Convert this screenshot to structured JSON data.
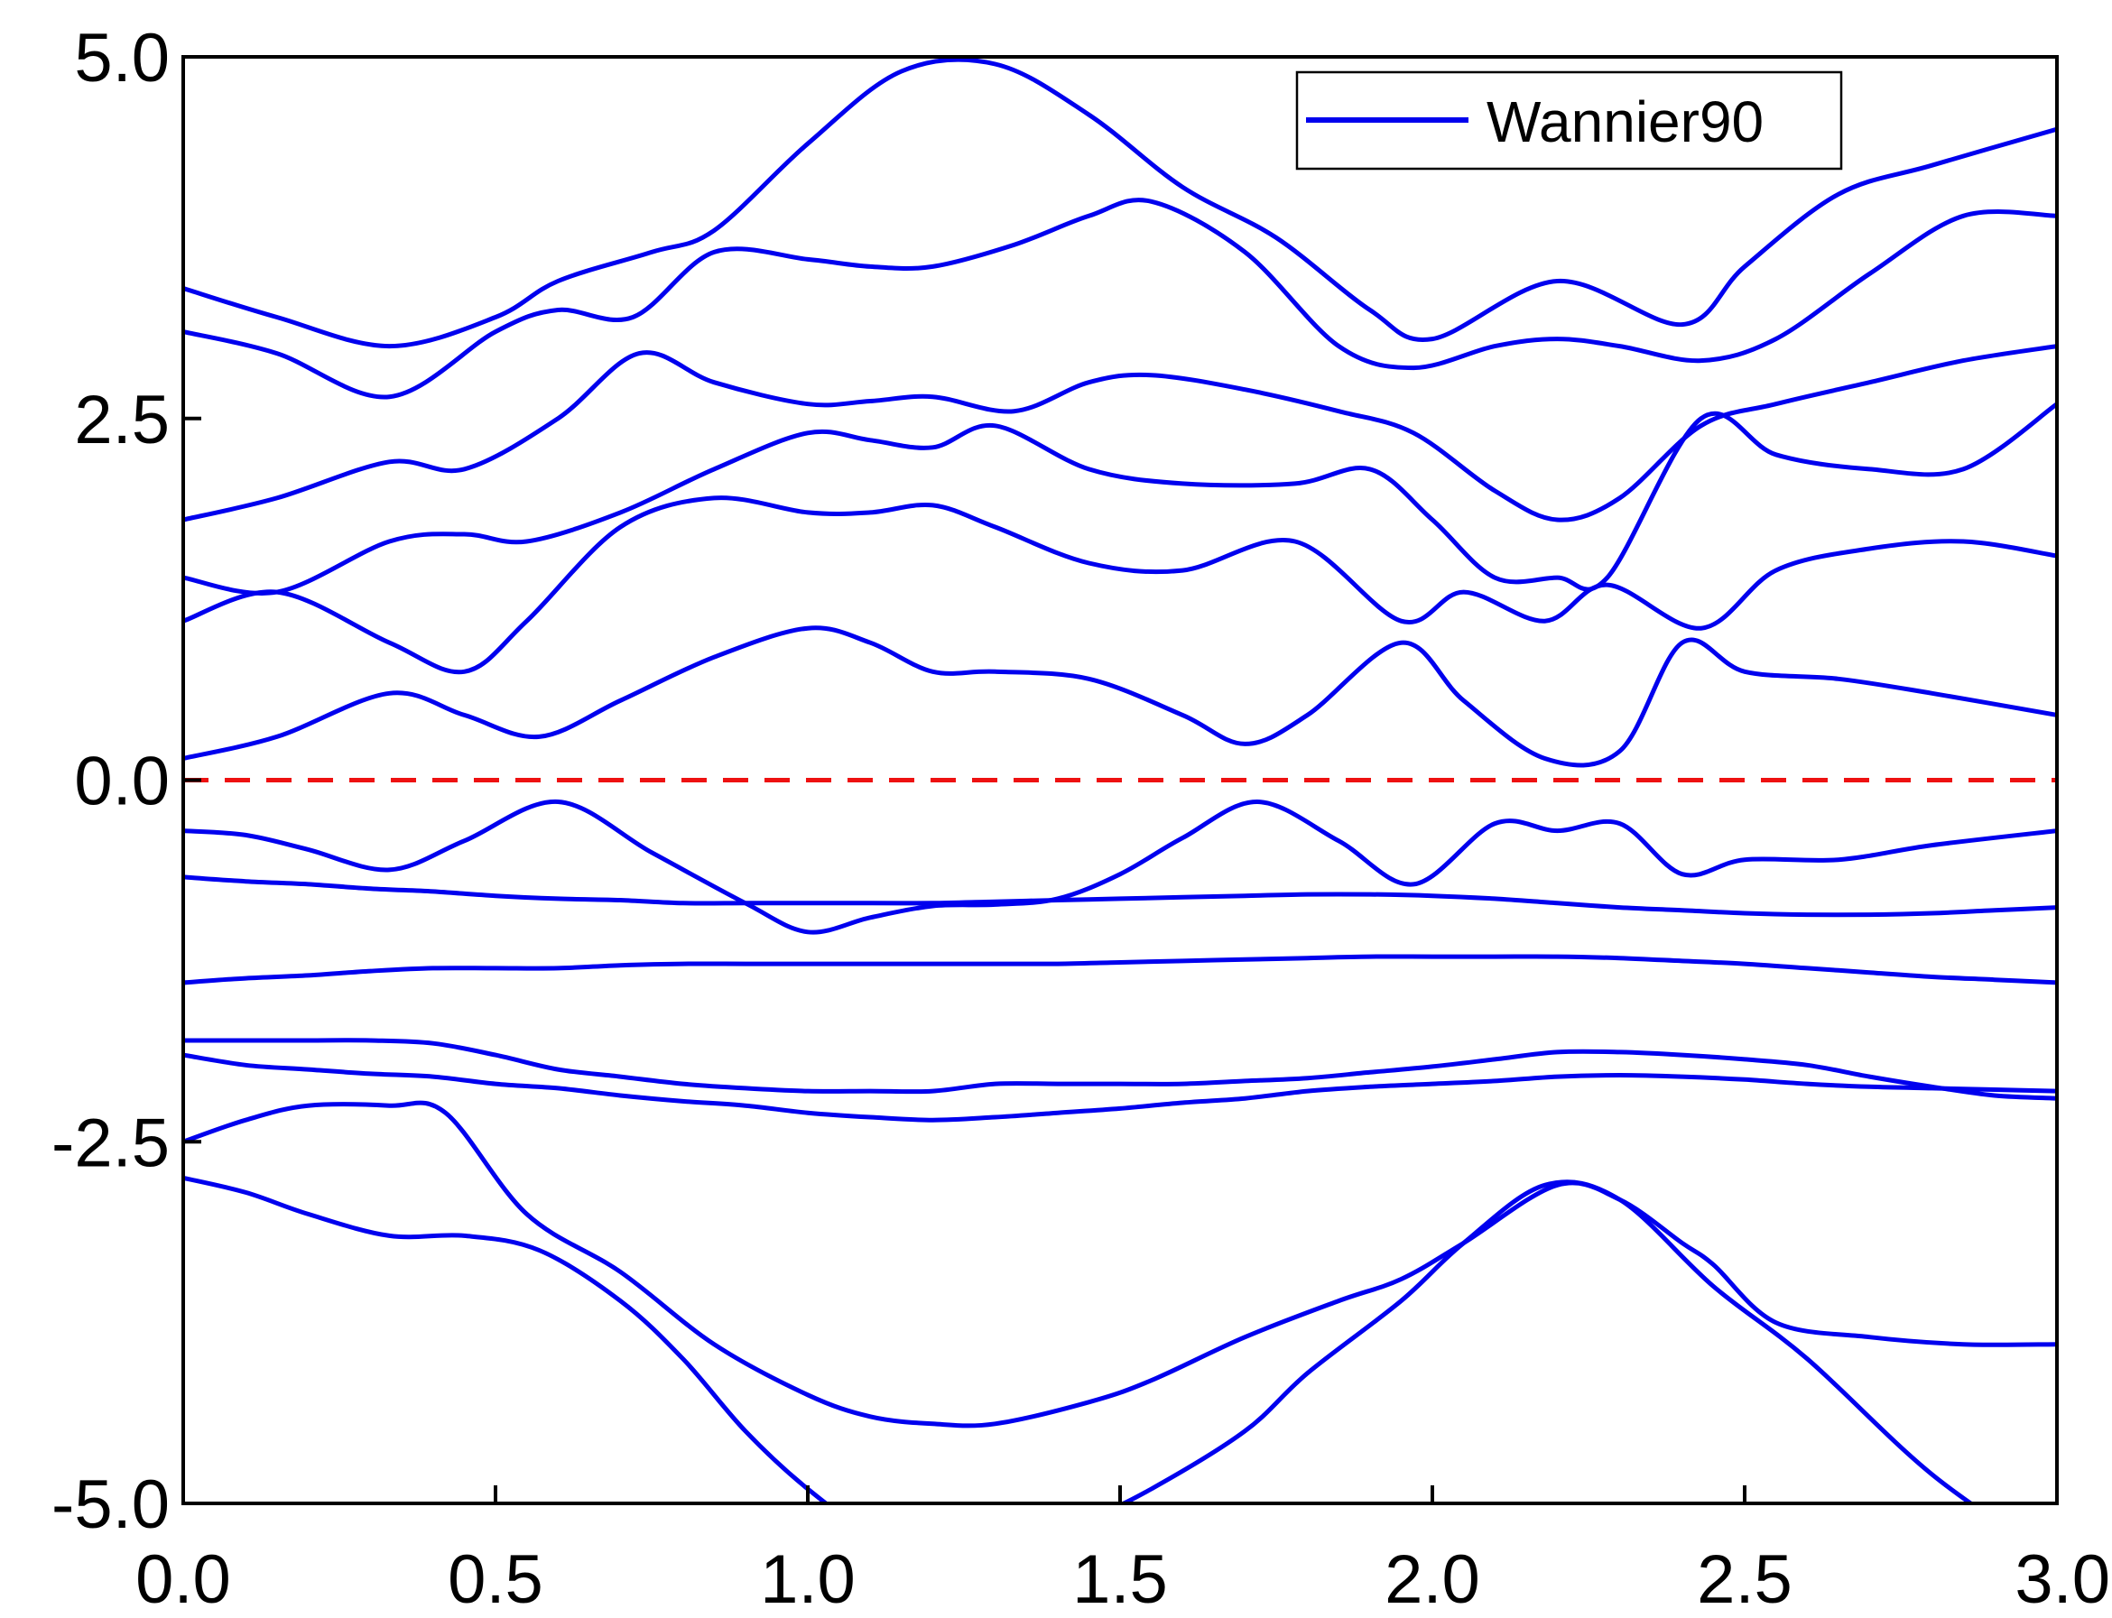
{
  "chart_data": {
    "type": "line",
    "title": "",
    "xlabel": "",
    "ylabel": "",
    "xlim": [
      0.0,
      3.0
    ],
    "ylim": [
      -5.0,
      5.0
    ],
    "xticks": [
      0.0,
      0.5,
      1.0,
      1.5,
      2.0,
      2.5,
      3.0
    ],
    "xtick_labels": [
      "0.0",
      "0.5",
      "1.0",
      "1.5",
      "2.0",
      "2.5",
      "3.0"
    ],
    "yticks": [
      -5.0,
      -2.5,
      0.0,
      2.5,
      5.0
    ],
    "ytick_labels": [
      "-5.0",
      "-2.5",
      "0.0",
      "2.5",
      "5.0"
    ],
    "grid": false,
    "legend_position": "top-right",
    "legend": [
      {
        "label": "Wannier90",
        "color": "#0000ee"
      }
    ],
    "reference_line": {
      "y": 0.0,
      "style": "dashed",
      "color": "#ee1111"
    },
    "series_color": "#0000ee",
    "series": [
      {
        "x": [
          0.0,
          0.1,
          0.2,
          0.33,
          0.45,
          0.57,
          0.7,
          0.8,
          0.9,
          1.0,
          1.1,
          1.2,
          1.3,
          1.45,
          1.55,
          1.7,
          1.8,
          1.95,
          2.05,
          2.18,
          2.3,
          2.45,
          2.6,
          2.8,
          3.0
        ],
        "values": [
          -2.75,
          -2.85,
          -3.0,
          -3.15,
          -3.15,
          -3.25,
          -3.6,
          -4.0,
          -4.5,
          -4.9,
          -5.2,
          -5.3,
          -5.3,
          -5.1,
          -4.9,
          -4.5,
          -4.1,
          -3.6,
          -3.2,
          -2.8,
          -2.9,
          -3.5,
          -4.0,
          -4.8,
          -5.4
        ]
      },
      {
        "x": [
          0.0,
          0.1,
          0.2,
          0.33,
          0.42,
          0.55,
          0.7,
          0.85,
          1.0,
          1.1,
          1.2,
          1.3,
          1.45,
          1.55,
          1.7,
          1.85,
          1.95,
          2.05,
          2.2,
          2.3,
          2.4,
          2.45,
          2.55,
          2.7,
          2.85,
          3.0
        ],
        "values": [
          -2.5,
          -2.35,
          -2.25,
          -2.25,
          -2.3,
          -3.0,
          -3.4,
          -3.9,
          -4.25,
          -4.4,
          -4.45,
          -4.45,
          -4.3,
          -4.15,
          -3.85,
          -3.6,
          -3.45,
          -3.2,
          -2.8,
          -2.9,
          -3.2,
          -3.35,
          -3.75,
          -3.85,
          -3.9,
          -3.9
        ]
      },
      {
        "x": [
          0.0,
          0.1,
          0.2,
          0.3,
          0.4,
          0.5,
          0.6,
          0.7,
          0.8,
          0.9,
          1.0,
          1.1,
          1.2,
          1.3,
          1.4,
          1.5,
          1.6,
          1.7,
          1.8,
          1.9,
          2.0,
          2.1,
          2.2,
          2.3,
          2.4,
          2.5,
          2.6,
          2.7,
          2.8,
          2.9,
          3.0
        ],
        "values": [
          -1.8,
          -1.8,
          -1.8,
          -1.8,
          -1.82,
          -1.9,
          -2.0,
          -2.05,
          -2.1,
          -2.13,
          -2.15,
          -2.15,
          -2.15,
          -2.1,
          -2.1,
          -2.1,
          -2.1,
          -2.08,
          -2.06,
          -2.02,
          -1.98,
          -1.93,
          -1.88,
          -1.88,
          -1.9,
          -1.93,
          -1.97,
          -2.05,
          -2.12,
          -2.18,
          -2.2
        ]
      },
      {
        "x": [
          0.0,
          0.1,
          0.2,
          0.3,
          0.4,
          0.5,
          0.6,
          0.7,
          0.8,
          0.9,
          1.0,
          1.1,
          1.2,
          1.3,
          1.4,
          1.5,
          1.6,
          1.7,
          1.8,
          1.9,
          2.0,
          2.1,
          2.2,
          2.3,
          2.4,
          2.5,
          2.6,
          2.7,
          2.8,
          2.9,
          3.0
        ],
        "values": [
          -1.9,
          -1.97,
          -2.0,
          -2.03,
          -2.05,
          -2.1,
          -2.13,
          -2.18,
          -2.22,
          -2.25,
          -2.3,
          -2.33,
          -2.35,
          -2.33,
          -2.3,
          -2.27,
          -2.23,
          -2.2,
          -2.15,
          -2.12,
          -2.1,
          -2.08,
          -2.05,
          -2.04,
          -2.05,
          -2.07,
          -2.1,
          -2.12,
          -2.13,
          -2.14,
          -2.15
        ]
      },
      {
        "x": [
          0.0,
          0.1,
          0.2,
          0.3,
          0.4,
          0.5,
          0.6,
          0.7,
          0.8,
          0.9,
          1.0,
          1.1,
          1.2,
          1.3,
          1.4,
          1.5,
          1.6,
          1.7,
          1.8,
          1.9,
          2.0,
          2.1,
          2.2,
          2.3,
          2.4,
          2.5,
          2.6,
          2.7,
          2.8,
          2.9,
          3.0
        ],
        "values": [
          -1.4,
          -1.37,
          -1.35,
          -1.32,
          -1.3,
          -1.3,
          -1.3,
          -1.28,
          -1.27,
          -1.27,
          -1.27,
          -1.27,
          -1.27,
          -1.27,
          -1.27,
          -1.26,
          -1.25,
          -1.24,
          -1.23,
          -1.22,
          -1.22,
          -1.22,
          -1.22,
          -1.23,
          -1.25,
          -1.27,
          -1.3,
          -1.33,
          -1.36,
          -1.38,
          -1.4
        ]
      },
      {
        "x": [
          0.0,
          0.1,
          0.2,
          0.3,
          0.4,
          0.5,
          0.6,
          0.7,
          0.8,
          0.9,
          1.0,
          1.1,
          1.2,
          1.3,
          1.4,
          1.5,
          1.6,
          1.7,
          1.8,
          1.9,
          2.0,
          2.1,
          2.2,
          2.3,
          2.4,
          2.5,
          2.6,
          2.7,
          2.8,
          2.9,
          3.0
        ],
        "values": [
          -0.67,
          -0.7,
          -0.72,
          -0.75,
          -0.77,
          -0.8,
          -0.82,
          -0.83,
          -0.85,
          -0.85,
          -0.85,
          -0.85,
          -0.85,
          -0.84,
          -0.83,
          -0.82,
          -0.81,
          -0.8,
          -0.79,
          -0.79,
          -0.8,
          -0.82,
          -0.85,
          -0.88,
          -0.9,
          -0.92,
          -0.93,
          -0.93,
          -0.92,
          -0.9,
          -0.88
        ]
      },
      {
        "x": [
          0.0,
          0.1,
          0.2,
          0.33,
          0.45,
          0.6,
          0.75,
          0.9,
          1.0,
          1.1,
          1.2,
          1.3,
          1.4,
          1.5,
          1.6,
          1.72,
          1.85,
          1.97,
          2.1,
          2.2,
          2.3,
          2.4,
          2.5,
          2.65,
          2.8,
          3.0
        ],
        "values": [
          -0.35,
          -0.38,
          -0.48,
          -0.62,
          -0.42,
          -0.15,
          -0.5,
          -0.85,
          -1.05,
          -0.95,
          -0.87,
          -0.86,
          -0.82,
          -0.65,
          -0.4,
          -0.15,
          -0.42,
          -0.72,
          -0.3,
          -0.35,
          -0.3,
          -0.65,
          -0.55,
          -0.55,
          -0.45,
          -0.35
        ]
      },
      {
        "x": [
          0.0,
          0.15,
          0.33,
          0.45,
          0.57,
          0.7,
          0.85,
          1.0,
          1.1,
          1.2,
          1.3,
          1.45,
          1.6,
          1.7,
          1.8,
          1.95,
          2.05,
          2.18,
          2.3,
          2.4,
          2.5,
          2.65,
          2.8,
          3.0
        ],
        "values": [
          0.15,
          0.3,
          0.6,
          0.45,
          0.3,
          0.55,
          0.85,
          1.05,
          0.95,
          0.75,
          0.75,
          0.7,
          0.45,
          0.25,
          0.45,
          0.95,
          0.55,
          0.15,
          0.2,
          0.95,
          0.75,
          0.7,
          0.6,
          0.45
        ]
      },
      {
        "x": [
          0.0,
          0.15,
          0.33,
          0.45,
          0.55,
          0.7,
          0.85,
          1.0,
          1.1,
          1.2,
          1.3,
          1.45,
          1.6,
          1.78,
          1.95,
          2.05,
          2.18,
          2.28,
          2.43,
          2.55,
          2.7,
          2.85,
          3.0
        ],
        "values": [
          1.1,
          1.3,
          0.95,
          0.75,
          1.1,
          1.75,
          1.95,
          1.85,
          1.85,
          1.9,
          1.75,
          1.5,
          1.45,
          1.65,
          1.1,
          1.3,
          1.1,
          1.35,
          1.05,
          1.45,
          1.6,
          1.65,
          1.55
        ]
      },
      {
        "x": [
          0.0,
          0.15,
          0.33,
          0.45,
          0.55,
          0.7,
          0.85,
          1.0,
          1.1,
          1.2,
          1.3,
          1.45,
          1.6,
          1.78,
          1.9,
          2.0,
          2.1,
          2.2,
          2.28,
          2.43,
          2.55,
          2.7,
          2.85,
          3.0
        ],
        "values": [
          1.4,
          1.3,
          1.65,
          1.7,
          1.65,
          1.85,
          2.15,
          2.4,
          2.35,
          2.3,
          2.45,
          2.15,
          2.05,
          2.05,
          2.15,
          1.8,
          1.4,
          1.4,
          1.4,
          2.5,
          2.25,
          2.15,
          2.15,
          2.6
        ]
      },
      {
        "x": [
          0.0,
          0.15,
          0.33,
          0.45,
          0.6,
          0.73,
          0.85,
          1.0,
          1.1,
          1.2,
          1.33,
          1.45,
          1.55,
          1.7,
          1.85,
          1.97,
          2.1,
          2.2,
          2.3,
          2.43,
          2.55,
          2.7,
          2.85,
          3.0
        ],
        "values": [
          1.8,
          1.95,
          2.2,
          2.15,
          2.5,
          2.95,
          2.75,
          2.6,
          2.62,
          2.65,
          2.55,
          2.75,
          2.8,
          2.7,
          2.55,
          2.4,
          2.0,
          1.8,
          1.95,
          2.45,
          2.6,
          2.75,
          2.9,
          3.0
        ]
      },
      {
        "x": [
          0.0,
          0.15,
          0.33,
          0.5,
          0.6,
          0.72,
          0.85,
          1.0,
          1.1,
          1.2,
          1.33,
          1.45,
          1.55,
          1.7,
          1.85,
          1.97,
          2.1,
          2.2,
          2.3,
          2.43,
          2.55,
          2.7,
          2.85,
          3.0
        ],
        "values": [
          3.1,
          2.95,
          2.65,
          3.1,
          3.25,
          3.2,
          3.65,
          3.6,
          3.55,
          3.55,
          3.7,
          3.9,
          4.0,
          3.65,
          3.0,
          2.85,
          3.0,
          3.05,
          3.0,
          2.9,
          3.05,
          3.5,
          3.9,
          3.9
        ]
      },
      {
        "x": [
          0.0,
          0.15,
          0.33,
          0.5,
          0.6,
          0.75,
          0.85,
          1.0,
          1.15,
          1.3,
          1.45,
          1.6,
          1.75,
          1.9,
          2.0,
          2.2,
          2.4,
          2.5,
          2.65,
          2.8,
          3.0
        ],
        "values": [
          3.4,
          3.2,
          3.0,
          3.2,
          3.45,
          3.65,
          3.8,
          4.4,
          4.9,
          4.95,
          4.6,
          4.1,
          3.75,
          3.25,
          3.05,
          3.45,
          3.15,
          3.55,
          4.05,
          4.25,
          4.5
        ]
      }
    ]
  }
}
